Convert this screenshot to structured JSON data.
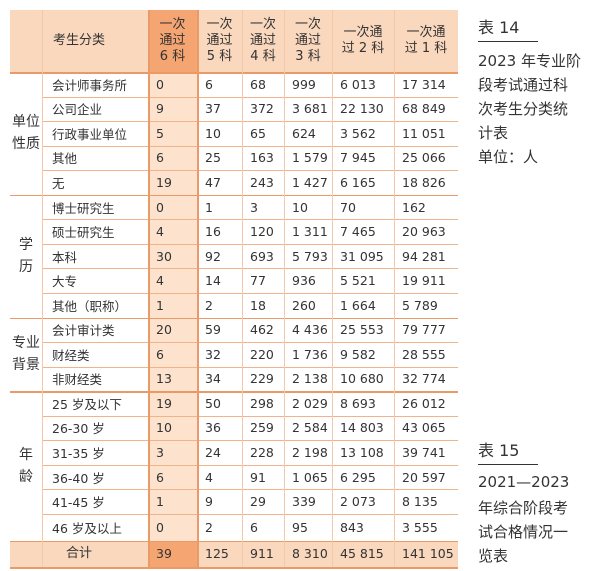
{
  "table": {
    "header": {
      "category": "考生分类",
      "columns": [
        [
          "一次",
          "通过",
          "6 科"
        ],
        [
          "一次",
          "通过",
          "5 科"
        ],
        [
          "一次",
          "通过",
          "4 科"
        ],
        [
          "一次",
          "通过",
          "3 科"
        ],
        [
          "一次通",
          "过 2 科"
        ],
        [
          "一次通",
          "过 1 科"
        ]
      ]
    },
    "groups": [
      {
        "label": [
          "单位",
          "性质"
        ],
        "rows": [
          {
            "label": "会计师事务所",
            "values": [
              "0",
              "6",
              "68",
              "999",
              "6 013",
              "17 314"
            ]
          },
          {
            "label": "公司企业",
            "values": [
              "9",
              "37",
              "372",
              "3 681",
              "22 130",
              "68 849"
            ]
          },
          {
            "label": "行政事业单位",
            "values": [
              "5",
              "10",
              "65",
              "624",
              "3 562",
              "11 051"
            ]
          },
          {
            "label": "其他",
            "values": [
              "6",
              "25",
              "163",
              "1 579",
              "7 945",
              "25 066"
            ]
          },
          {
            "label": "无",
            "values": [
              "19",
              "47",
              "243",
              "1 427",
              "6 165",
              "18 826"
            ]
          }
        ]
      },
      {
        "label": [
          "学",
          "历"
        ],
        "rows": [
          {
            "label": "博士研究生",
            "values": [
              "0",
              "1",
              "3",
              "10",
              "70",
              "162"
            ]
          },
          {
            "label": "硕士研究生",
            "values": [
              "4",
              "16",
              "120",
              "1 311",
              "7 465",
              "20 963"
            ]
          },
          {
            "label": "本科",
            "values": [
              "30",
              "92",
              "693",
              "5 793",
              "31 095",
              "94 281"
            ]
          },
          {
            "label": "大专",
            "values": [
              "4",
              "14",
              "77",
              "936",
              "5 521",
              "19 911"
            ]
          },
          {
            "label": "其他（职称）",
            "values": [
              "1",
              "2",
              "18",
              "260",
              "1 664",
              "5 789"
            ]
          }
        ]
      },
      {
        "label": [
          "专业",
          "背景"
        ],
        "rows": [
          {
            "label": "会计审计类",
            "values": [
              "20",
              "59",
              "462",
              "4 436",
              "25 553",
              "79 777"
            ]
          },
          {
            "label": "财经类",
            "values": [
              "6",
              "32",
              "220",
              "1 736",
              "9 582",
              "28 555"
            ]
          },
          {
            "label": "非财经类",
            "values": [
              "13",
              "34",
              "229",
              "2 138",
              "10 680",
              "32 774"
            ]
          }
        ]
      },
      {
        "label": [
          "年",
          "龄"
        ],
        "rows": [
          {
            "label": "25 岁及以下",
            "values": [
              "19",
              "50",
              "298",
              "2 029",
              "8 693",
              "26 012"
            ]
          },
          {
            "label": "26-30 岁",
            "values": [
              "10",
              "36",
              "259",
              "2 584",
              "14 803",
              "43 065"
            ]
          },
          {
            "label": "31-35 岁",
            "values": [
              "3",
              "24",
              "228",
              "2 198",
              "13 108",
              "39 741"
            ]
          },
          {
            "label": "36-40 岁",
            "values": [
              "6",
              "4",
              "91",
              "1 065",
              "6 295",
              "20 597"
            ]
          },
          {
            "label": "41-45 岁",
            "values": [
              "1",
              "9",
              "29",
              "339",
              "2 073",
              "8 135"
            ]
          },
          {
            "label": "46 岁及以上",
            "values": [
              "0",
              "2",
              "6",
              "95",
              "843",
              "3 555"
            ]
          }
        ]
      }
    ],
    "total": {
      "label": "合计",
      "values": [
        "39",
        "125",
        "911",
        "8 310",
        "45 815",
        "141 105"
      ]
    }
  },
  "notes": [
    {
      "label": "表 14",
      "lines": [
        "2023 年专业阶",
        "段考试通过科",
        "次考生分类统",
        "计表"
      ],
      "unit": "单位：人"
    },
    {
      "label": "表 15",
      "lines": [
        "2021—2023",
        "年综合阶段考",
        "试合格情况一",
        "览表"
      ]
    }
  ]
}
